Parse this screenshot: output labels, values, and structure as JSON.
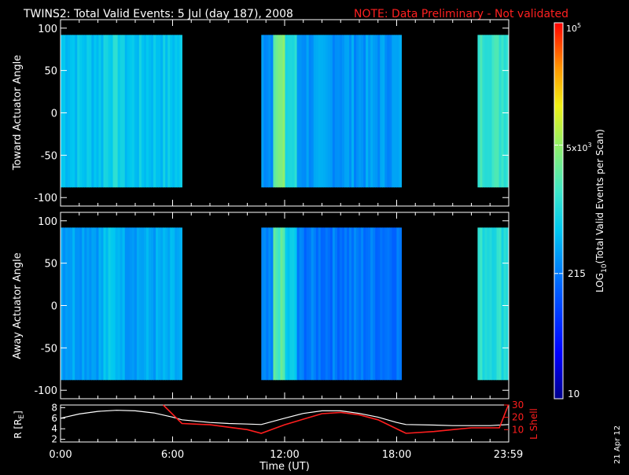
{
  "title": "TWINS2: Total Valid Events:  5 Jul (day 187), 2008",
  "note": "NOTE: Data Preliminary - Not validated",
  "date_stamp": "21 Apr 12",
  "colors": {
    "background": "#000000",
    "axes": "#ffffff",
    "note": "#ff2020",
    "r_line": "#ffffff",
    "l_line": "#ff1e1e"
  },
  "colorbar": {
    "label": "LOG10(Total Valid Events per Scan)",
    "tick_labels": [
      "10",
      "215",
      "5x10^3",
      "10^5"
    ],
    "tick_values": [
      10,
      215,
      5000,
      100000
    ],
    "range": [
      10,
      100000
    ],
    "scale": "log"
  },
  "chart_data": [
    {
      "type": "heatmap",
      "name": "toward",
      "ylabel": "Toward Actuator Angle",
      "ylim": [
        -110,
        110
      ],
      "yticks": [
        "100",
        "50",
        "0",
        "-50",
        "-100"
      ],
      "ytick_values": [
        100,
        50,
        0,
        -50,
        -100
      ],
      "angle_range": [
        -88,
        92
      ],
      "xlim_hours": [
        0,
        24
      ],
      "data_intervals": [
        {
          "start": "0:00",
          "end": "6:30",
          "level": 0.45
        },
        {
          "start": "10:45",
          "end": "18:15",
          "level": 0.38
        },
        {
          "start": "22:20",
          "end": "23:59",
          "level": 0.55
        }
      ]
    },
    {
      "type": "heatmap",
      "name": "away",
      "ylabel": "Away Actuator Angle",
      "ylim": [
        -110,
        110
      ],
      "yticks": [
        "100",
        "50",
        "0",
        "-50",
        "-100"
      ],
      "ytick_values": [
        100,
        50,
        0,
        -50,
        -100
      ],
      "angle_range": [
        -88,
        92
      ],
      "xlim_hours": [
        0,
        24
      ],
      "data_intervals": [
        {
          "start": "0:00",
          "end": "6:30",
          "level": 0.4
        },
        {
          "start": "10:45",
          "end": "18:15",
          "level": 0.33
        },
        {
          "start": "22:20",
          "end": "23:59",
          "level": 0.52
        }
      ]
    },
    {
      "type": "line",
      "name": "orbit",
      "xlabel": "Time (UT)",
      "xticks": [
        "0:00",
        "6:00",
        "12:00",
        "18:00",
        "23:59"
      ],
      "xtick_hours": [
        0,
        6,
        12,
        18,
        23.98
      ],
      "xlim_hours": [
        0,
        24
      ],
      "left_axis": {
        "label": "R [RE]",
        "ticks": [
          "2",
          "4",
          "6",
          "8"
        ],
        "tick_values": [
          2,
          4,
          6,
          8
        ],
        "ylim": [
          1.5,
          8.5
        ]
      },
      "right_axis": {
        "label": "L Shell",
        "ticks": [
          "10",
          "20",
          "30"
        ],
        "tick_values": [
          10,
          20,
          30
        ],
        "ylim": [
          0,
          30
        ]
      },
      "series": [
        {
          "name": "R [RE]",
          "axis": "left",
          "x": [
            0,
            1,
            2,
            3,
            4,
            5,
            6,
            6.5,
            8,
            9,
            10,
            10.75,
            12,
            13,
            14,
            15,
            16,
            17,
            18,
            18.5,
            20,
            21,
            22,
            23,
            23.98
          ],
          "y": [
            6.0,
            6.8,
            7.3,
            7.5,
            7.4,
            7.0,
            6.2,
            5.7,
            5.2,
            5.0,
            4.9,
            4.8,
            6.0,
            6.9,
            7.4,
            7.4,
            6.9,
            6.2,
            5.2,
            4.8,
            4.7,
            4.6,
            4.6,
            4.6,
            4.8
          ]
        },
        {
          "name": "L Shell",
          "axis": "right",
          "x": [
            5.5,
            6.5,
            8,
            10,
            10.75,
            12,
            14,
            15,
            16,
            17,
            18.5,
            20,
            21,
            22,
            23.5,
            23.98
          ],
          "y": [
            30,
            15,
            14,
            10,
            7,
            14,
            23,
            24,
            22,
            18,
            7,
            8.5,
            10,
            11.5,
            11.5,
            30
          ]
        }
      ]
    }
  ],
  "labels": {
    "re_sub": "E",
    "cb_label_prefix": "LOG",
    "cb_label_sub": "10",
    "cb_label_rest": "(Total Valid Events per Scan)",
    "exp_3": "3",
    "exp_5": "5",
    "ten": "10",
    "five_times": "5x10"
  }
}
